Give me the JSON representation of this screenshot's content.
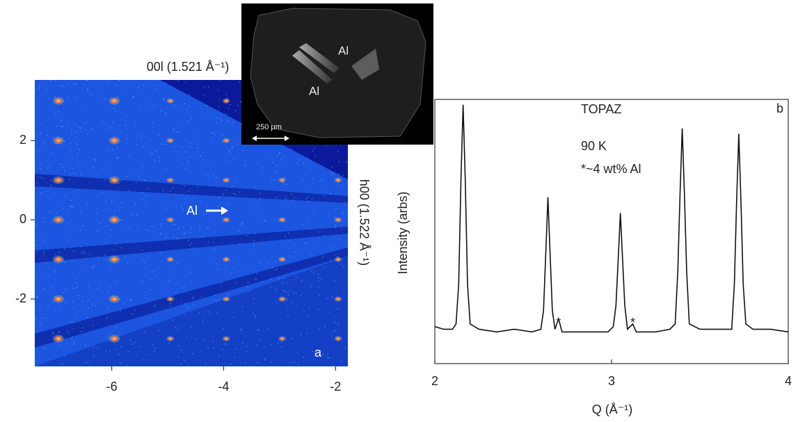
{
  "chart_data": [
    {
      "type": "image",
      "top_label": "00l (1.521 Å⁻¹)",
      "right_label": "h00 (1.522 Å⁻¹)",
      "panel_label": "a",
      "arrow_label": "Al",
      "inset": {
        "labels": [
          "Al",
          "Al"
        ],
        "scale_bar": "250 μm"
      },
      "xlim": [
        -7.375,
        -1.78
      ],
      "ylim": [
        -3.7,
        3.53
      ],
      "xticks": [
        -6,
        -4,
        -2
      ],
      "yticks": [
        2,
        0,
        -2
      ]
    },
    {
      "type": "line",
      "xlabel": "Q (Å⁻¹)",
      "ylabel": "Intensity (arbs)",
      "annotations": [
        "TOPAZ",
        "90 K",
        "*~4 wt% Al"
      ],
      "panel_label": "b",
      "markers": [
        {
          "text": "*",
          "x": 2.7
        },
        {
          "text": "*",
          "x": 3.12
        }
      ],
      "xlim": [
        2,
        4
      ],
      "ylim": [
        0,
        100
      ],
      "xticks": [
        2,
        3,
        4
      ],
      "color": "#111",
      "x": [
        2.0,
        2.05,
        2.1,
        2.12,
        2.135,
        2.148,
        2.16,
        2.172,
        2.185,
        2.2,
        2.25,
        2.35,
        2.45,
        2.55,
        2.6,
        2.615,
        2.628,
        2.64,
        2.652,
        2.665,
        2.68,
        2.7,
        2.72,
        2.8,
        2.9,
        2.98,
        3.01,
        3.025,
        3.038,
        3.05,
        3.062,
        3.075,
        3.09,
        3.12,
        3.14,
        3.25,
        3.33,
        3.36,
        3.375,
        3.388,
        3.4,
        3.412,
        3.425,
        3.44,
        3.5,
        3.6,
        3.68,
        3.695,
        3.708,
        3.72,
        3.732,
        3.745,
        3.76,
        3.8,
        3.9,
        4.0
      ],
      "values": [
        14,
        13,
        13,
        15,
        30,
        70,
        98,
        70,
        30,
        15,
        13,
        12,
        13,
        12,
        13,
        20,
        42,
        63,
        42,
        20,
        13,
        17,
        12,
        12,
        12,
        12,
        14,
        22,
        40,
        57,
        40,
        22,
        13,
        15,
        12,
        12,
        13,
        15,
        35,
        65,
        89,
        65,
        35,
        15,
        13,
        13,
        13,
        30,
        62,
        87,
        62,
        30,
        15,
        13,
        13,
        12
      ]
    }
  ]
}
